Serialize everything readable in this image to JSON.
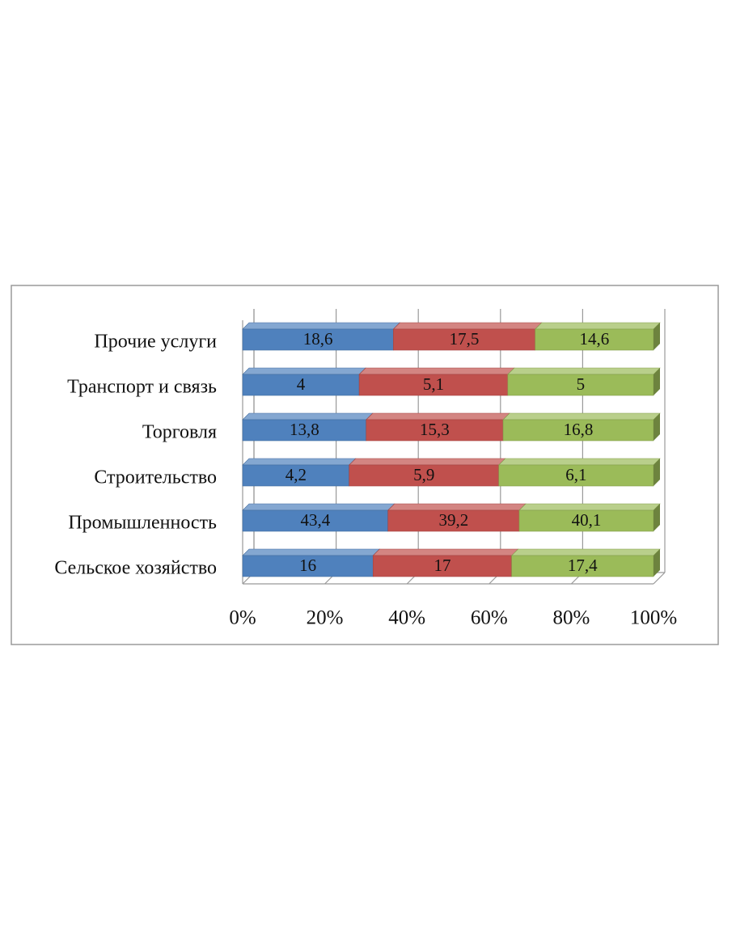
{
  "chart_data": {
    "type": "bar",
    "orientation": "horizontal",
    "stacking": "percent",
    "categories": [
      "Сельское хозяйство",
      "Промышленность",
      "Строительство",
      "Торговля",
      "Транспорт и связь",
      "Прочие услуги"
    ],
    "series": [
      {
        "color": "#4f81bd",
        "values": [
          16,
          43.4,
          4.2,
          13.8,
          4,
          18.6
        ],
        "value_labels": [
          "16",
          "43,4",
          "4,2",
          "13,8",
          "4",
          "18,6"
        ]
      },
      {
        "color": "#c0504d",
        "values": [
          17,
          39.2,
          5.9,
          15.3,
          5.1,
          17.5
        ],
        "value_labels": [
          "17",
          "39,2",
          "5,9",
          "15,3",
          "5,1",
          "17,5"
        ]
      },
      {
        "color": "#9bbb59",
        "values": [
          17.4,
          40.1,
          6.1,
          16.8,
          5,
          14.6
        ],
        "value_labels": [
          "17,4",
          "40,1",
          "6,1",
          "16,8",
          "5",
          "14,6"
        ]
      }
    ],
    "xlim": [
      0,
      100
    ],
    "xticks": [
      {
        "value": 0,
        "label": "0%"
      },
      {
        "value": 20,
        "label": "20%"
      },
      {
        "value": 40,
        "label": "40%"
      },
      {
        "value": 60,
        "label": "60%"
      },
      {
        "value": 80,
        "label": "80%"
      },
      {
        "value": 100,
        "label": "100%"
      }
    ],
    "grid": true
  }
}
